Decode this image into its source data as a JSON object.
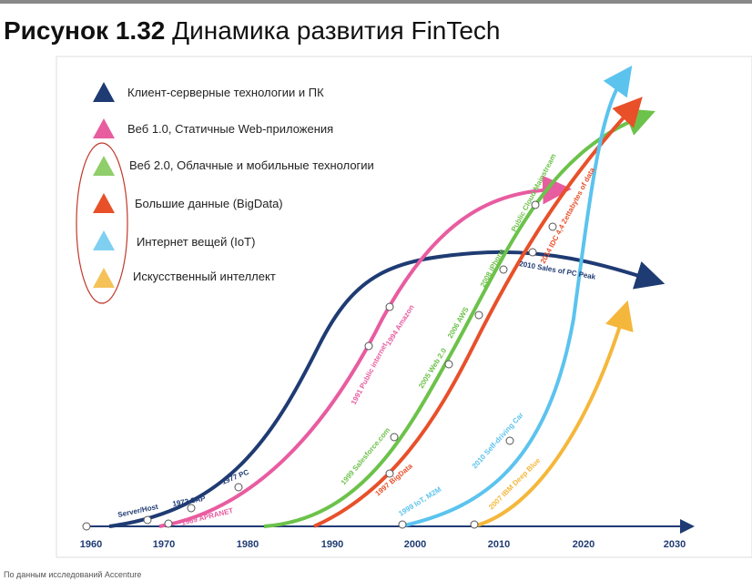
{
  "header": {
    "figure": "Рисунок 1.32",
    "title": "Динамика развития FinTech"
  },
  "legend": [
    "Клиент-серверные технологии и ПК",
    "Веб 1.0, Статичные Web-приложения",
    "Веб 2.0, Облачные и мобильные технологии",
    "Большие данные (BigData)",
    "Интернет вещей (IoT)",
    "Искусственный интеллект"
  ],
  "timeline": [
    "1960",
    "1970",
    "1980",
    "1990",
    "2000",
    "2010",
    "2020",
    "2030"
  ],
  "annotations": [
    "Server/Host",
    "1972 SAP",
    "1977 PC",
    "1969 APRANET",
    "1991 Public internet",
    "1994 Amazon",
    "1999 Salesforce.com",
    "2005 Web 2.0",
    "2006 AWS",
    "2008 iPhone",
    "Public Cloud Mainstream",
    "2010 Sales of PC Peak",
    "1997 BigData",
    "2014 IDC 4,4 Zettabytes of data",
    "1999 IoT, M2M",
    "2010 Self-driving Car",
    "2007 IBM Deep Blue"
  ],
  "footer": "По данным исследований Accenture"
}
